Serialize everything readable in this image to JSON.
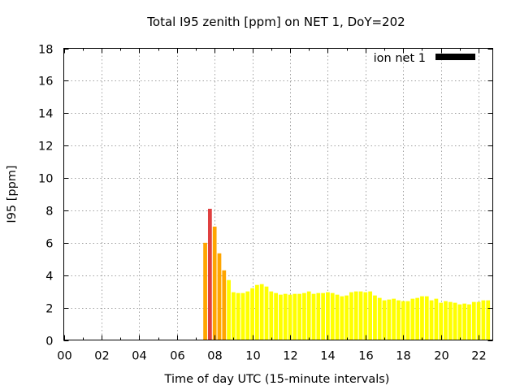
{
  "chart_data": {
    "type": "bar",
    "title": "Total I95 zenith [ppm] on NET 1, DoY=202",
    "xlabel": "Time of day UTC (15-minute intervals)",
    "ylabel": "I95 [ppm]",
    "xlim": [
      0,
      22.75
    ],
    "ylim": [
      0,
      18
    ],
    "x_ticks": [
      "00",
      "02",
      "04",
      "06",
      "08",
      "10",
      "12",
      "14",
      "16",
      "18",
      "20",
      "22"
    ],
    "y_ticks": [
      "0",
      "2",
      "4",
      "6",
      "8",
      "10",
      "12",
      "14",
      "16",
      "18"
    ],
    "grid": true,
    "legend": {
      "position": "top-right",
      "entries": [
        {
          "label": "ion net 1",
          "color": "#000000"
        }
      ]
    },
    "bar_interval_hours": 0.25,
    "color_scale": [
      {
        "max": 4,
        "color": "#ffff00"
      },
      {
        "max": 7.5,
        "color": "#ffa500"
      },
      {
        "max": 100,
        "color": "#e04040"
      }
    ],
    "series": [
      {
        "x": [
          7.5,
          7.75,
          8.0,
          8.25,
          8.5,
          8.75,
          9.0,
          9.25,
          9.5,
          9.75,
          10.0,
          10.25,
          10.5,
          10.75,
          11.0,
          11.25,
          11.5,
          11.75,
          12.0,
          12.25,
          12.5,
          12.75,
          13.0,
          13.25,
          13.5,
          13.75,
          14.0,
          14.25,
          14.5,
          14.75,
          15.0,
          15.25,
          15.5,
          15.75,
          16.0,
          16.25,
          16.5,
          16.75,
          17.0,
          17.25,
          17.5,
          17.75,
          18.0,
          18.25,
          18.5,
          18.75,
          19.0,
          19.25,
          19.5,
          19.75,
          20.0,
          20.25,
          20.5,
          20.75,
          21.0,
          21.25,
          21.5,
          21.75,
          22.0,
          22.25,
          22.5
        ],
        "values": [
          6.0,
          8.1,
          7.0,
          5.35,
          4.3,
          3.7,
          2.95,
          2.9,
          2.9,
          3.0,
          3.2,
          3.4,
          3.45,
          3.3,
          3.0,
          2.9,
          2.8,
          2.85,
          2.8,
          2.85,
          2.85,
          2.9,
          3.0,
          2.85,
          2.9,
          2.9,
          2.95,
          2.9,
          2.8,
          2.7,
          2.75,
          2.95,
          3.0,
          3.0,
          2.95,
          3.0,
          2.75,
          2.6,
          2.45,
          2.5,
          2.55,
          2.45,
          2.4,
          2.4,
          2.55,
          2.6,
          2.7,
          2.7,
          2.45,
          2.55,
          2.3,
          2.4,
          2.35,
          2.3,
          2.2,
          2.25,
          2.2,
          2.35,
          2.35,
          2.45,
          2.45
        ]
      }
    ]
  }
}
